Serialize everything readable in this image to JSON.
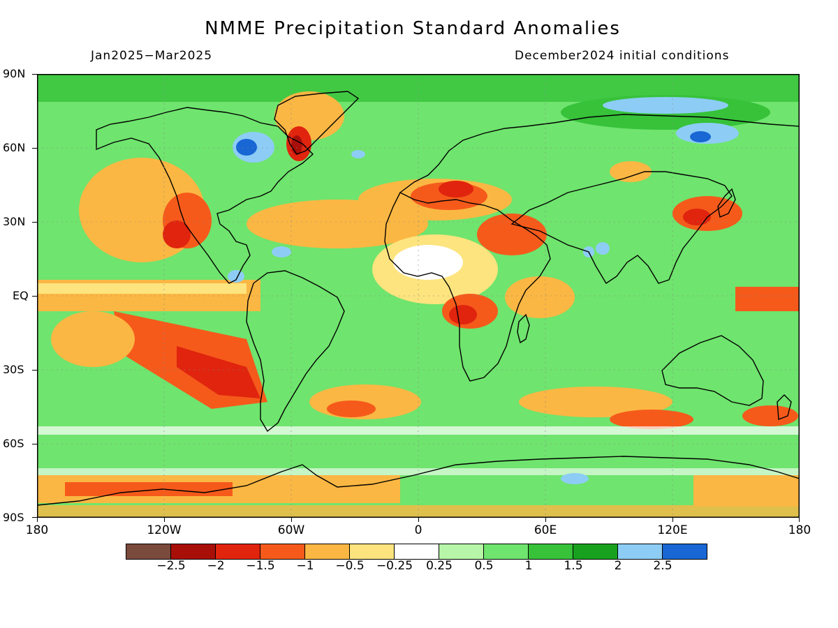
{
  "title": "NMME Precipitation Standard Anomalies",
  "period": "Jan2025−Mar2025",
  "initial_conditions": "December2024 initial conditions",
  "map": {
    "projection": "equirectangular",
    "lon_range": [
      -180,
      180
    ],
    "lat_range": [
      -90,
      90
    ],
    "lat_labels": [
      "90N",
      "60N",
      "30N",
      "EQ",
      "30S",
      "60S",
      "90S"
    ],
    "lon_labels": [
      "180",
      "120W",
      "60W",
      "0",
      "60E",
      "120E",
      "180"
    ],
    "background_anomaly_color": "#6fe46e",
    "coastline_color": "#000000"
  },
  "colorbar": {
    "colors": [
      "#7a4a3c",
      "#a80f08",
      "#e0240e",
      "#f55a1b",
      "#fbb743",
      "#fde47e",
      "#ffffff",
      "#b7f6a8",
      "#6fe46e",
      "#37c23a",
      "#18a11f",
      "#8dcdf5",
      "#1867d4"
    ],
    "labels": [
      "−2.5",
      "−2",
      "−1.5",
      "−1",
      "−0.5",
      "−0.25",
      "0.25",
      "0.5",
      "1",
      "1.5",
      "2",
      "2.5"
    ]
  }
}
